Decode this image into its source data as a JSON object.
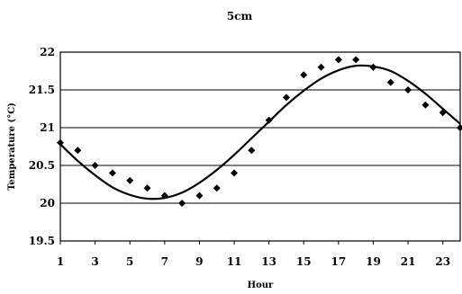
{
  "chart_data": {
    "type": "scatter",
    "title": "5cm",
    "xlabel": "Hour",
    "ylabel": "Temperature (°C)",
    "xlim": [
      1,
      24
    ],
    "ylim": [
      19.5,
      22
    ],
    "x_ticks": [
      "1",
      "3",
      "5",
      "7",
      "9",
      "11",
      "13",
      "15",
      "17",
      "19",
      "21",
      "23"
    ],
    "y_ticks": [
      "19.5",
      "20",
      "20.5",
      "21",
      "21.5",
      "22"
    ],
    "grid": "horizontal",
    "legend": "none",
    "marker_color": "#000000",
    "series": [
      {
        "kind": "points",
        "x": [
          1,
          2,
          3,
          4,
          5,
          6,
          7,
          8,
          9,
          10,
          11,
          12,
          13,
          14,
          15,
          16,
          17,
          18,
          19,
          20,
          21,
          22,
          23,
          24
        ],
        "values": [
          20.8,
          20.7,
          20.5,
          20.4,
          20.3,
          20.2,
          20.1,
          20.0,
          20.1,
          20.2,
          20.4,
          20.7,
          21.1,
          21.4,
          21.7,
          21.8,
          21.9,
          21.9,
          21.8,
          21.6,
          21.5,
          21.3,
          21.2,
          21.0
        ]
      },
      {
        "kind": "fitted-curve",
        "x": [
          1,
          2,
          3,
          4,
          5,
          6,
          7,
          8,
          9,
          10,
          11,
          12,
          13,
          14,
          15,
          16,
          17,
          18,
          19,
          20,
          21,
          22,
          23,
          24
        ],
        "values": [
          20.78,
          20.56,
          20.37,
          20.21,
          20.11,
          20.06,
          20.07,
          20.14,
          20.27,
          20.44,
          20.64,
          20.86,
          21.08,
          21.3,
          21.49,
          21.65,
          21.76,
          21.82,
          21.81,
          21.75,
          21.62,
          21.45,
          21.25,
          21.05
        ]
      }
    ]
  }
}
